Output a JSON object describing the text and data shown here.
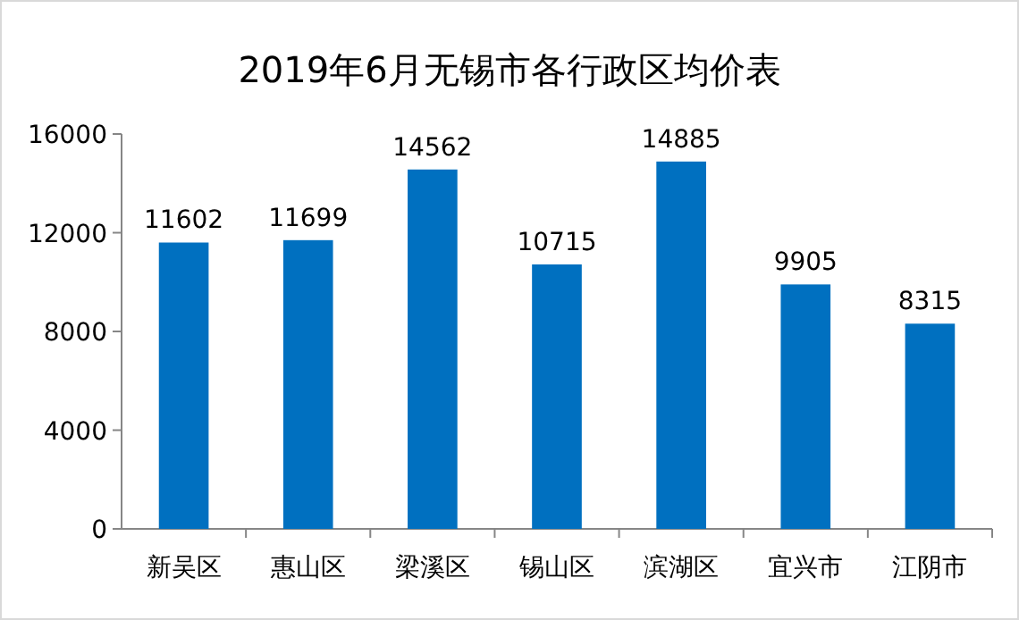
{
  "chart_data": {
    "type": "bar",
    "title": "2019年6月无锡市各行政区均价表",
    "categories": [
      "新吴区",
      "惠山区",
      "梁溪区",
      "锡山区",
      "滨湖区",
      "宜兴市",
      "江阴市"
    ],
    "values": [
      11602,
      11699,
      14562,
      10715,
      14885,
      9905,
      8315
    ],
    "color": "#0070c0",
    "ylim": [
      0,
      16000
    ],
    "yticks": [
      0,
      4000,
      8000,
      12000,
      16000
    ],
    "data_labels": true
  }
}
